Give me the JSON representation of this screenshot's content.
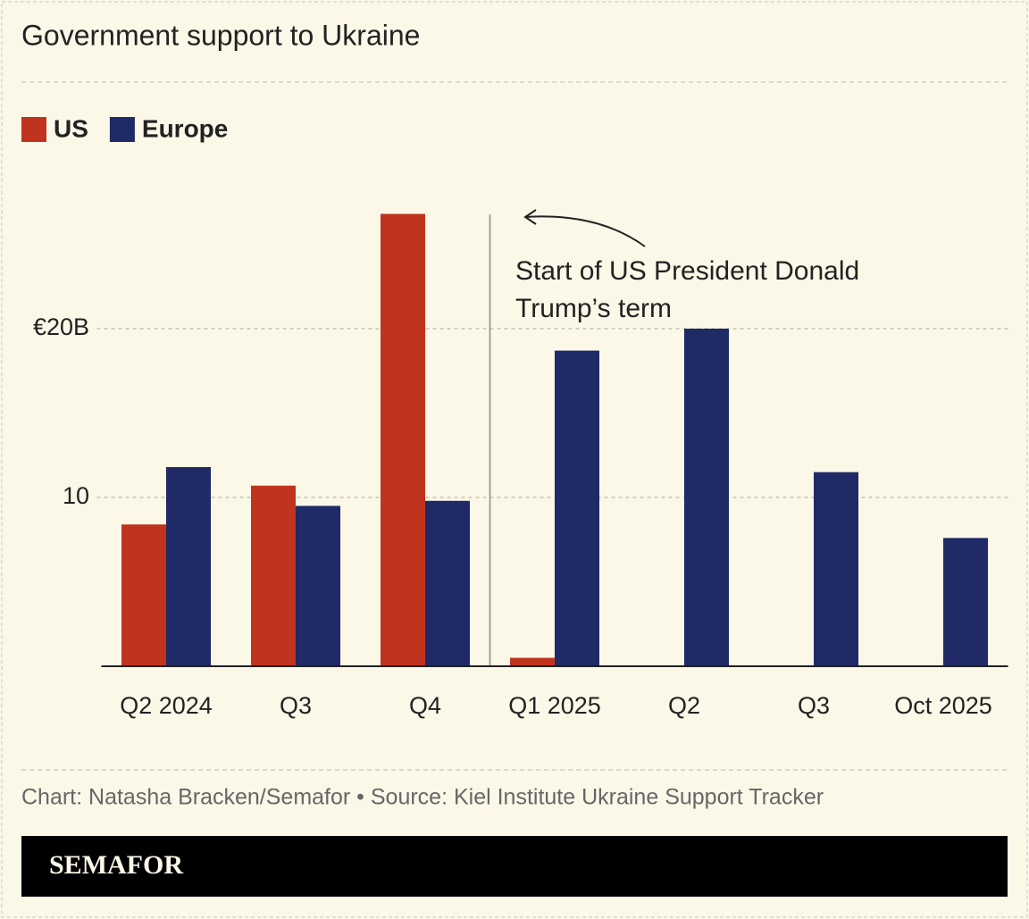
{
  "chart_data": {
    "type": "bar",
    "title": "Government support to Ukraine",
    "categories": [
      "Q2 2024",
      "Q3",
      "Q4",
      "Q1 2025",
      "Q2",
      "Q3",
      "Oct 2025"
    ],
    "series": [
      {
        "name": "US",
        "color": "#c0341f",
        "values": [
          8.4,
          10.7,
          26.8,
          0.5,
          null,
          null,
          null
        ]
      },
      {
        "name": "Europe",
        "color": "#1f2a66",
        "values": [
          11.8,
          9.5,
          9.8,
          18.7,
          20.0,
          11.5,
          7.6
        ]
      }
    ],
    "ylim": [
      0,
      28
    ],
    "yticks": [
      10,
      {
        "value": 20,
        "label": "€20B"
      }
    ],
    "grid": true,
    "legend": "top-left",
    "annotation": [
      "Start of US President Donald",
      "Trump’s term"
    ],
    "source": "Chart: Natasha Bracken/Semafor • Source: Kiel Institute Ukraine Support Tracker",
    "brand": "SEMAFOR"
  }
}
